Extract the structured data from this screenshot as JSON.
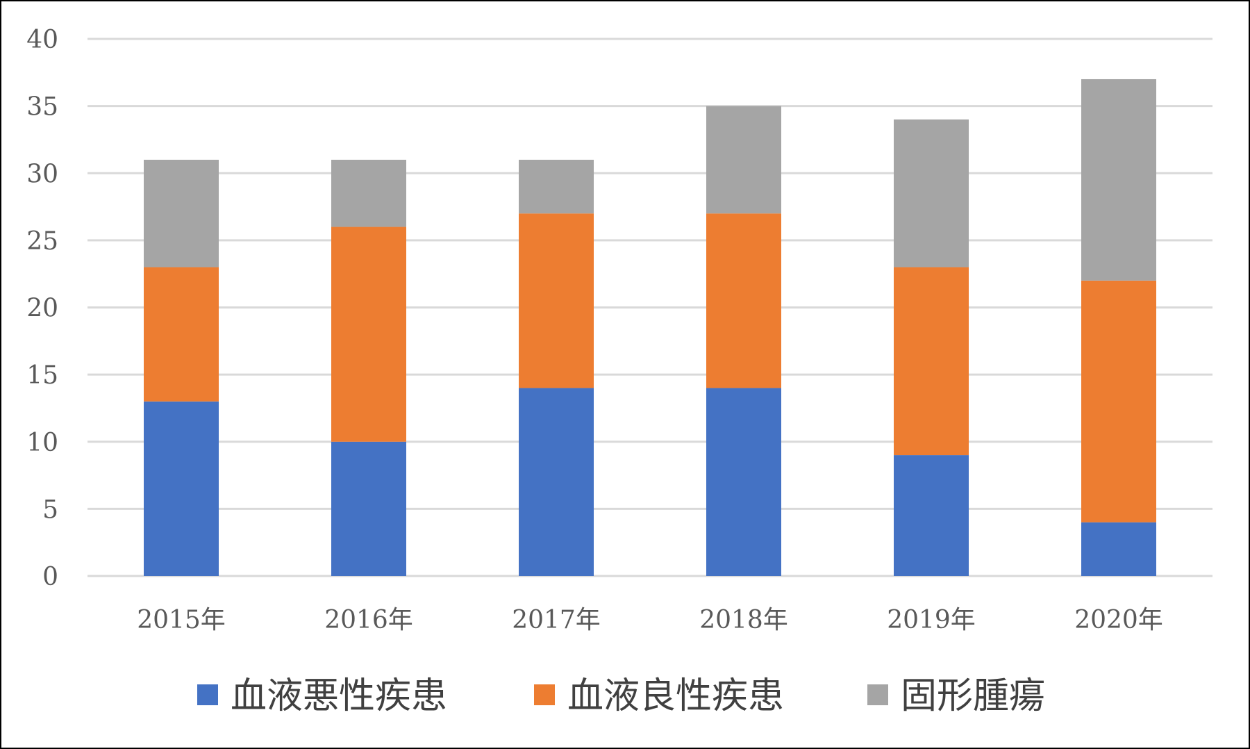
{
  "chart_data": {
    "type": "bar",
    "stacked": true,
    "categories": [
      "2015年",
      "2016年",
      "2017年",
      "2018年",
      "2019年",
      "2020年"
    ],
    "series": [
      {
        "name": "血液悪性疾患",
        "color": "#4472C4",
        "values": [
          13,
          10,
          14,
          14,
          9,
          4
        ]
      },
      {
        "name": "血液良性疾患",
        "color": "#ED7D31",
        "values": [
          10,
          16,
          13,
          13,
          14,
          18
        ]
      },
      {
        "name": "固形腫瘍",
        "color": "#A5A5A5",
        "values": [
          8,
          5,
          4,
          8,
          11,
          15
        ]
      }
    ],
    "ylim": [
      0,
      40
    ],
    "yticks": [
      0,
      5,
      10,
      15,
      20,
      25,
      30,
      35,
      40
    ],
    "grid": true,
    "legend_position": "bottom",
    "title": "",
    "xlabel": "",
    "ylabel": ""
  }
}
